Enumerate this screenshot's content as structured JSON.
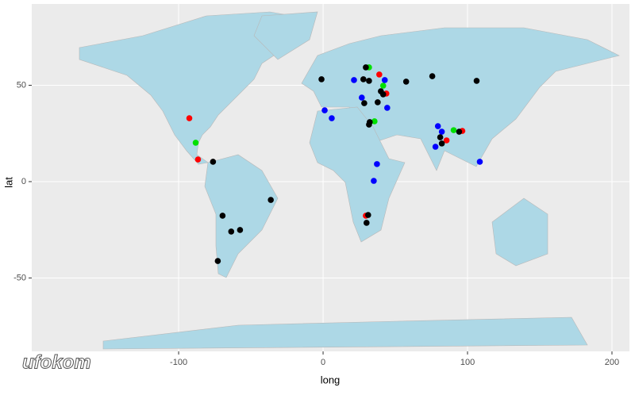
{
  "chart_data": {
    "type": "scatter",
    "x_label": "long",
    "y_label": "lat",
    "xlim": [
      -201.7,
      212.1
    ],
    "ylim": [
      -88.1,
      92.2
    ],
    "xticks": [
      -100,
      0,
      100,
      200
    ],
    "yticks": [
      -50,
      0,
      50
    ],
    "grid": true,
    "watermark": "ufokom",
    "series": [
      {
        "color": "#ff0000",
        "x": [
          -92.6,
          -86.6,
          38.9,
          43.8,
          29.6,
          85.5,
          96.4
        ],
        "y": [
          32.9,
          11.5,
          55.6,
          45.7,
          -17.7,
          21.4,
          26.3
        ]
      },
      {
        "color": "#00e000",
        "x": [
          -88.2,
          31.8,
          41.6,
          35.6,
          90.4
        ],
        "y": [
          20.2,
          59.3,
          49.8,
          31.3,
          26.7
        ]
      },
      {
        "color": "#0000ff",
        "x": [
          21.4,
          42.7,
          1.1,
          6,
          26.8,
          44.4,
          79.5,
          82.2,
          77.8,
          37.3,
          35.1,
          108.5
        ],
        "y": [
          52.7,
          52.7,
          37,
          32.9,
          43.6,
          38.3,
          28.8,
          25.9,
          18.1,
          9.1,
          0.4,
          10.3
        ]
      },
      {
        "color": "#000000",
        "x": [
          -1.1,
          29.6,
          27.9,
          31.8,
          57.5,
          75.6,
          106.3,
          28.5,
          37.8,
          40,
          41.6,
          32.3,
          31.8,
          81.1,
          82.2,
          94.2,
          -76.2,
          -36.2,
          -69.6,
          -63.6,
          -57.5,
          -72.9,
          31.2,
          30.1
        ],
        "y": [
          53.1,
          59.3,
          53.1,
          52.3,
          51.9,
          54.7,
          52.3,
          40.7,
          41.2,
          46.9,
          45.3,
          30.9,
          29.6,
          23,
          19.8,
          25.9,
          10.3,
          -9.5,
          -17.7,
          -25.9,
          -25.1,
          -41.2,
          -17.3,
          -21.4
        ]
      }
    ]
  }
}
